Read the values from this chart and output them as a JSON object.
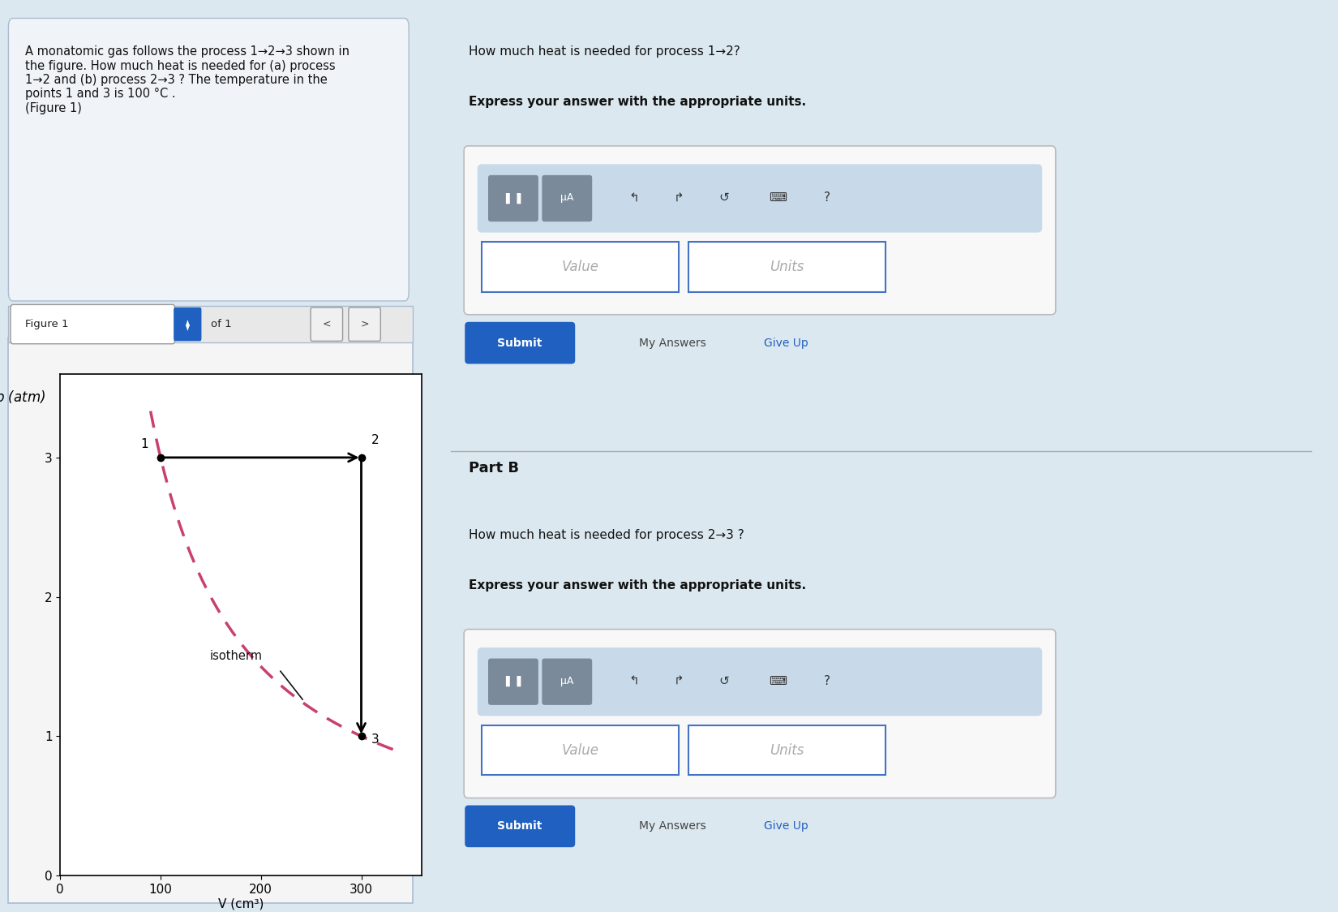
{
  "page_bg": "#dce8f0",
  "left_panel_bg": "#dce8f0",
  "right_panel_bg": "#ffffff",
  "left_text": "A monatomic gas follows the process 1→2→3 shown in\nthe figure. How much heat is needed for (a) process\n1→2 and (b) process 2→3 ? The temperature in the\npoints 1 and 3 is 100 °C .\n(Figure 1)",
  "figure_label": "Figure 1",
  "of_label": "of 1",
  "p_label": "p (atm)",
  "v_label": "V (cm³)",
  "yticks": [
    0,
    1,
    2,
    3
  ],
  "xticks": [
    0,
    100,
    200,
    300
  ],
  "point1": [
    100,
    3
  ],
  "point2": [
    300,
    3
  ],
  "point3": [
    300,
    1
  ],
  "label1": "1",
  "label2": "2",
  "label3": "3",
  "isotherm_label": "isotherm",
  "arrow_color": "#000000",
  "dashed_color": "#c94070",
  "plot_bg": "#ffffff",
  "right_q1_text": "How much heat is needed for process 1→2?",
  "right_bold1": "Express your answer with the appropriate units.",
  "part_b": "Part B",
  "right_q2_text": "How much heat is needed for process 2→3 ?",
  "right_bold2": "Express your answer with the appropriate units.",
  "submit_color": "#2060c0",
  "submit_text": "Submit",
  "my_answers_text": "My Answers",
  "give_up_text": "Give Up",
  "toolbar_bg": "#c8daea",
  "input_box_border": "#4472c4",
  "value_placeholder": "Value",
  "units_placeholder": "Units"
}
